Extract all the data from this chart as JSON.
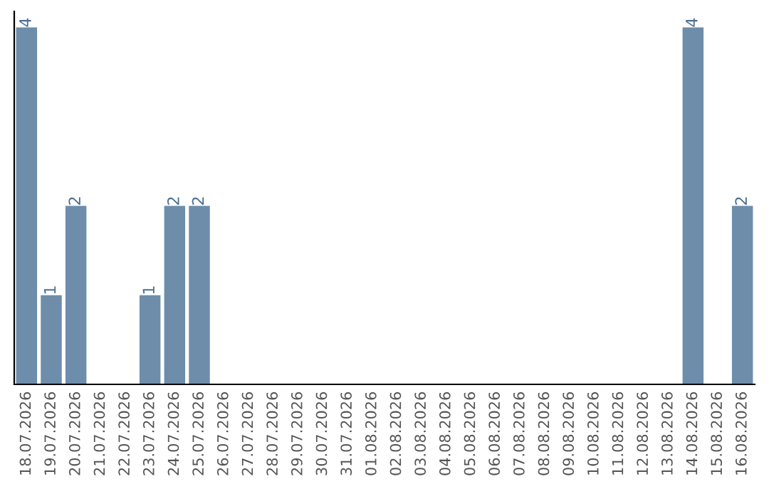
{
  "chart_data": {
    "type": "bar",
    "categories": [
      "18.07.2026",
      "19.07.2026",
      "20.07.2026",
      "21.07.2026",
      "22.07.2026",
      "23.07.2026",
      "24.07.2026",
      "25.07.2026",
      "26.07.2026",
      "27.07.2026",
      "28.07.2026",
      "29.07.2026",
      "30.07.2026",
      "31.07.2026",
      "01.08.2026",
      "02.08.2026",
      "03.08.2026",
      "04.08.2026",
      "05.08.2026",
      "06.08.2026",
      "07.08.2026",
      "08.08.2026",
      "09.08.2026",
      "10.08.2026",
      "11.08.2026",
      "12.08.2026",
      "13.08.2026",
      "14.08.2026",
      "15.08.2026",
      "16.08.2026"
    ],
    "values": [
      4,
      1,
      2,
      0,
      0,
      1,
      2,
      2,
      0,
      0,
      0,
      0,
      0,
      0,
      0,
      0,
      0,
      0,
      0,
      0,
      0,
      0,
      0,
      0,
      0,
      0,
      0,
      4,
      0,
      2
    ],
    "value_labels": [
      "4",
      "1",
      "2",
      null,
      null,
      "1",
      "2",
      "2",
      null,
      null,
      null,
      null,
      null,
      null,
      null,
      null,
      null,
      null,
      null,
      null,
      null,
      null,
      null,
      null,
      null,
      null,
      null,
      "4",
      null,
      "2"
    ],
    "color": "#6d8dab",
    "tick_labels": "x",
    "grid": false,
    "legend": false
  }
}
